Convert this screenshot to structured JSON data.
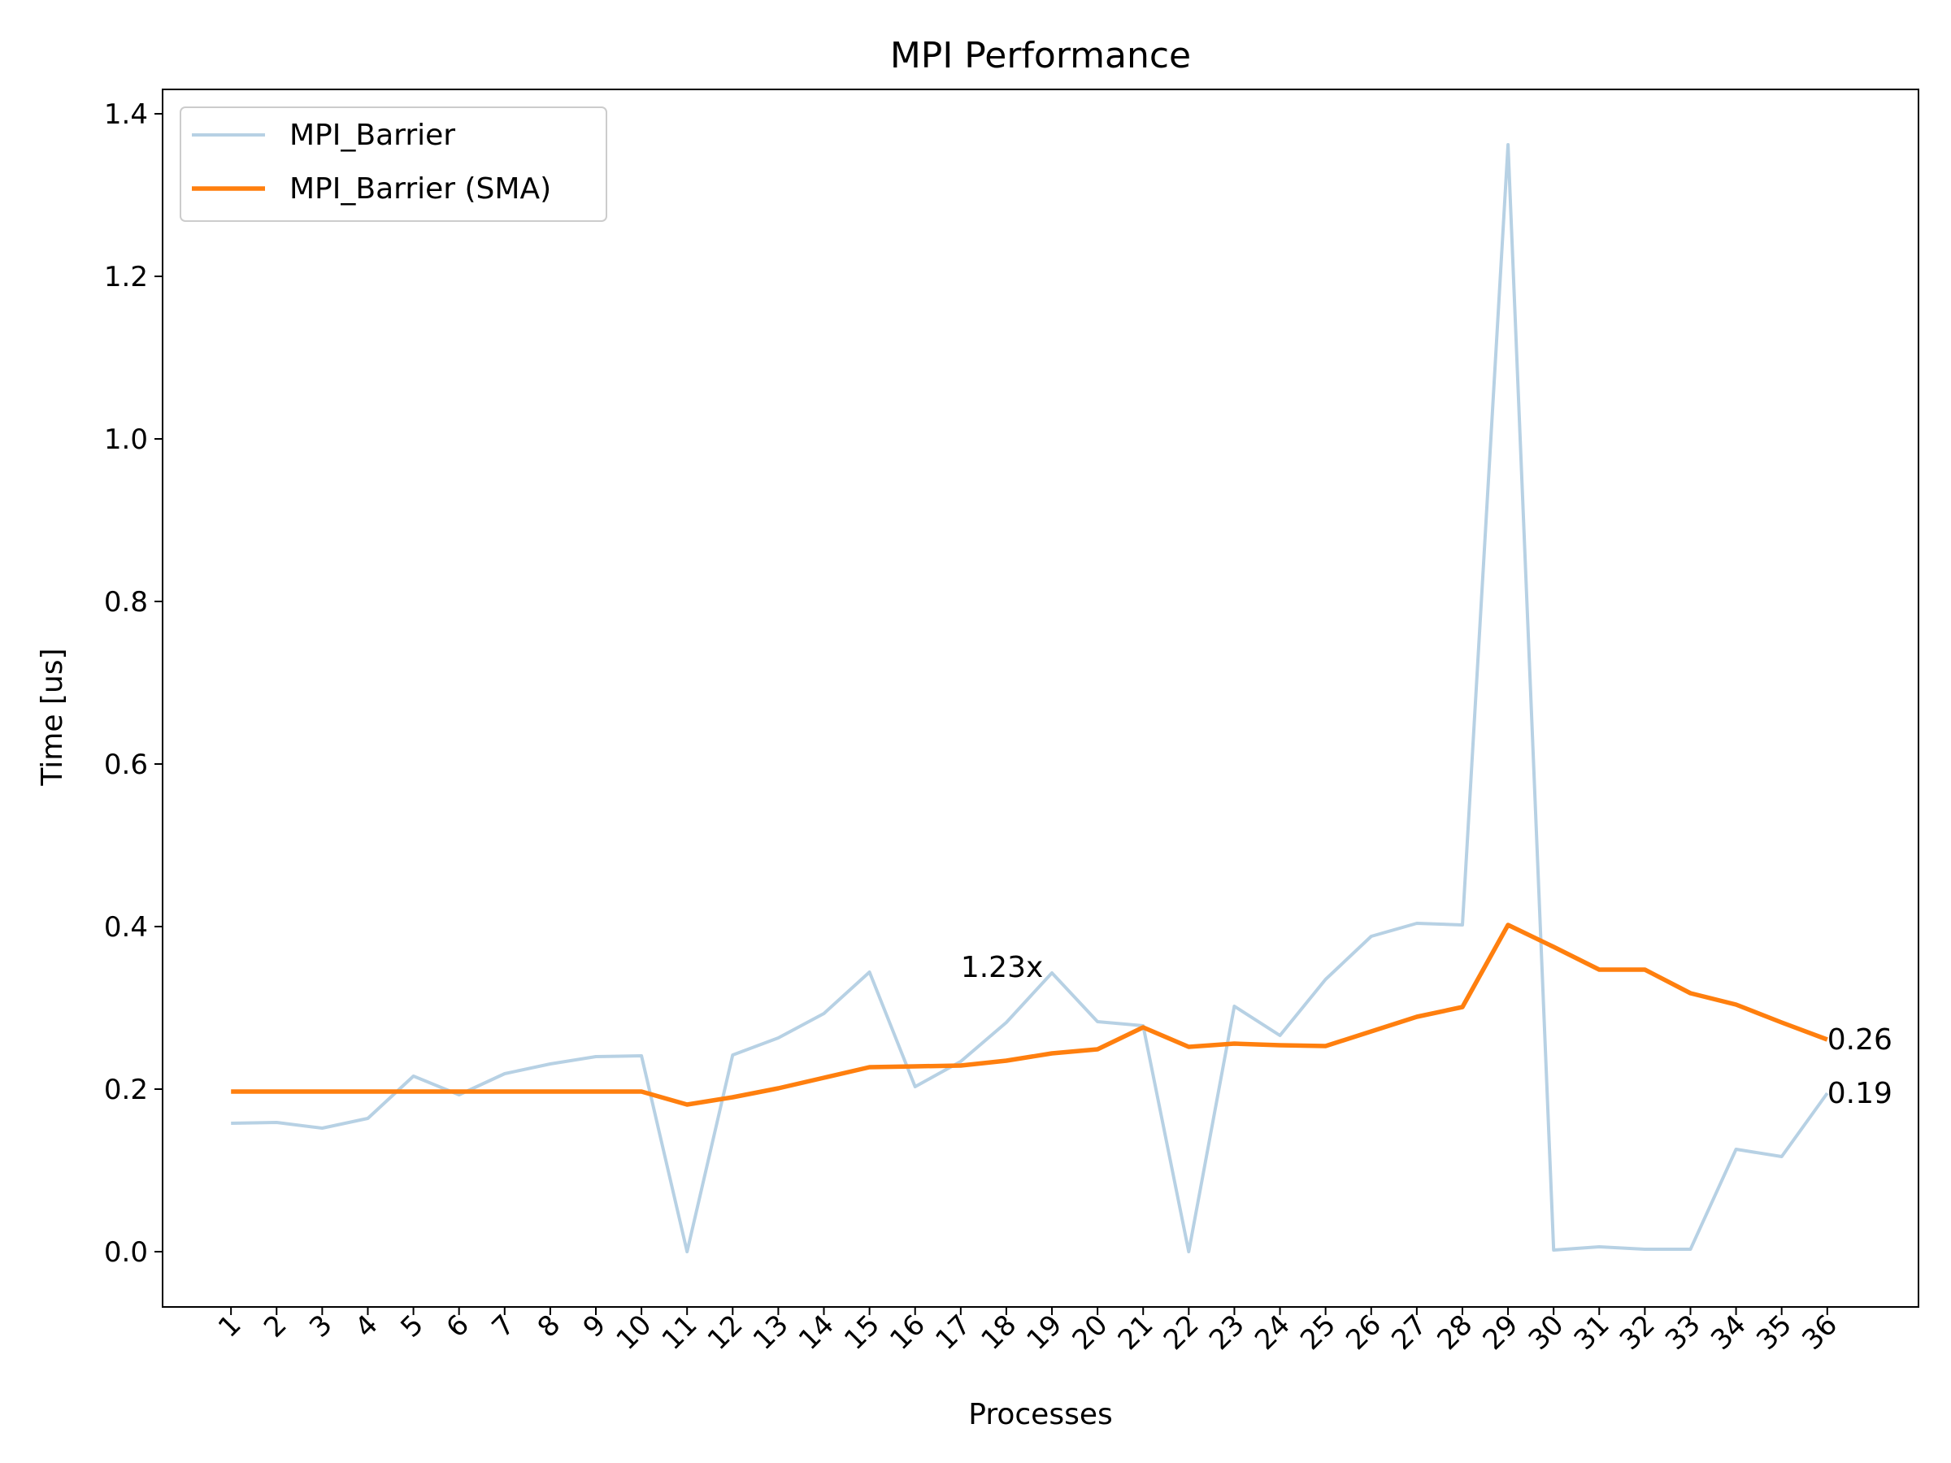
{
  "chart_data": {
    "type": "line",
    "title": "MPI Performance",
    "xlabel": "Processes",
    "ylabel": "Time [us]",
    "categories": [
      "1",
      "2",
      "3",
      "4",
      "5",
      "6",
      "7",
      "8",
      "9",
      "10",
      "11",
      "12",
      "13",
      "14",
      "15",
      "16",
      "17",
      "18",
      "19",
      "20",
      "21",
      "22",
      "23",
      "24",
      "25",
      "26",
      "27",
      "28",
      "29",
      "30",
      "31",
      "32",
      "33",
      "34",
      "35",
      "36"
    ],
    "xlim": [
      -0.5,
      38
    ],
    "ylim": [
      -0.068,
      1.43
    ],
    "yticks": [
      0.0,
      0.2,
      0.4,
      0.6,
      0.8,
      1.0,
      1.2,
      1.4
    ],
    "ytick_labels": [
      "0.0",
      "0.2",
      "0.4",
      "0.6",
      "0.8",
      "1.0",
      "1.2",
      "1.4"
    ],
    "grid": false,
    "legend": "upper left",
    "series": [
      {
        "name": "MPI_Barrier",
        "color": "#b7d1e4",
        "values": [
          0.158,
          0.159,
          0.152,
          0.164,
          0.216,
          0.193,
          0.219,
          0.231,
          0.24,
          0.241,
          0.0,
          0.242,
          0.263,
          0.293,
          0.344,
          0.203,
          0.234,
          0.282,
          0.343,
          0.283,
          0.278,
          0.0,
          0.302,
          0.266,
          0.335,
          0.388,
          0.404,
          0.402,
          1.362,
          0.002,
          0.006,
          0.003,
          0.003,
          0.126,
          0.117,
          0.195
        ]
      },
      {
        "name": "MPI_Barrier (SMA)",
        "color": "#ff7f0e",
        "values": [
          0.197,
          0.197,
          0.197,
          0.197,
          0.197,
          0.197,
          0.197,
          0.197,
          0.197,
          0.197,
          0.181,
          0.19,
          0.201,
          0.214,
          0.227,
          0.228,
          0.229,
          0.235,
          0.244,
          0.249,
          0.276,
          0.252,
          0.256,
          0.254,
          0.253,
          0.271,
          0.289,
          0.301,
          0.402,
          0.375,
          0.347,
          0.347,
          0.318,
          0.304,
          0.282,
          0.261
        ]
      }
    ],
    "annotations": [
      {
        "text": "1.23x",
        "x": 17,
        "y": 0.35
      },
      {
        "text": "0.26",
        "x": 36,
        "y": 0.261
      },
      {
        "text": "0.19",
        "x": 36,
        "y": 0.195
      }
    ]
  }
}
